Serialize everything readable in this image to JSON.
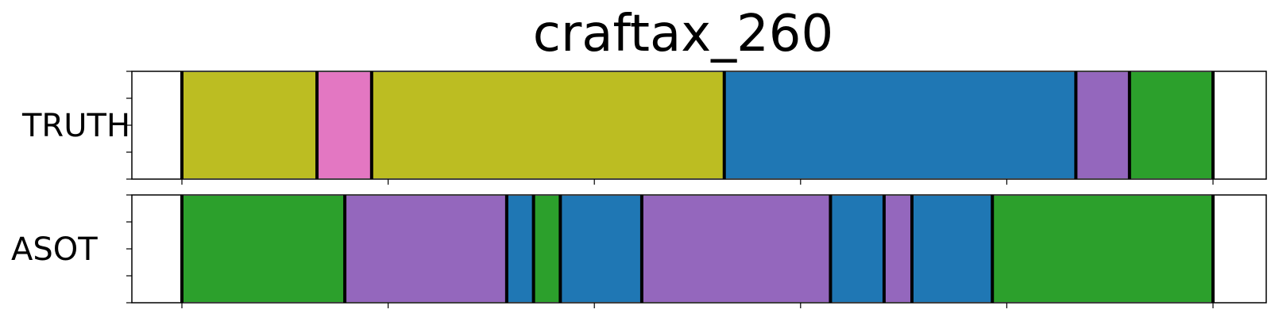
{
  "chart_data": {
    "type": "bar",
    "title": "craftax_260",
    "xlabel": "",
    "ylabel": "",
    "xlim": [
      0,
      100
    ],
    "colors": {
      "olive": "#bcbd22",
      "pink": "#e377c2",
      "blue": "#1f77b4",
      "purple": "#9467bd",
      "green": "#2ca02c"
    },
    "rows": [
      {
        "label": "TRUTH",
        "segments": [
          {
            "start": 0.0,
            "end": 13.1,
            "color": "olive"
          },
          {
            "start": 13.1,
            "end": 18.4,
            "color": "pink"
          },
          {
            "start": 18.4,
            "end": 52.6,
            "color": "olive"
          },
          {
            "start": 52.6,
            "end": 86.7,
            "color": "blue"
          },
          {
            "start": 86.7,
            "end": 91.9,
            "color": "purple"
          },
          {
            "start": 91.9,
            "end": 100.0,
            "color": "green"
          }
        ]
      },
      {
        "label": "ASOT",
        "segments": [
          {
            "start": 0.0,
            "end": 15.8,
            "color": "green"
          },
          {
            "start": 15.8,
            "end": 31.5,
            "color": "purple"
          },
          {
            "start": 31.5,
            "end": 34.1,
            "color": "blue"
          },
          {
            "start": 34.1,
            "end": 36.7,
            "color": "green"
          },
          {
            "start": 36.7,
            "end": 44.6,
            "color": "blue"
          },
          {
            "start": 44.6,
            "end": 62.9,
            "color": "purple"
          },
          {
            "start": 62.9,
            "end": 68.1,
            "color": "blue"
          },
          {
            "start": 68.1,
            "end": 70.8,
            "color": "purple"
          },
          {
            "start": 70.8,
            "end": 78.6,
            "color": "blue"
          },
          {
            "start": 78.6,
            "end": 100.0,
            "color": "green"
          }
        ]
      }
    ]
  }
}
